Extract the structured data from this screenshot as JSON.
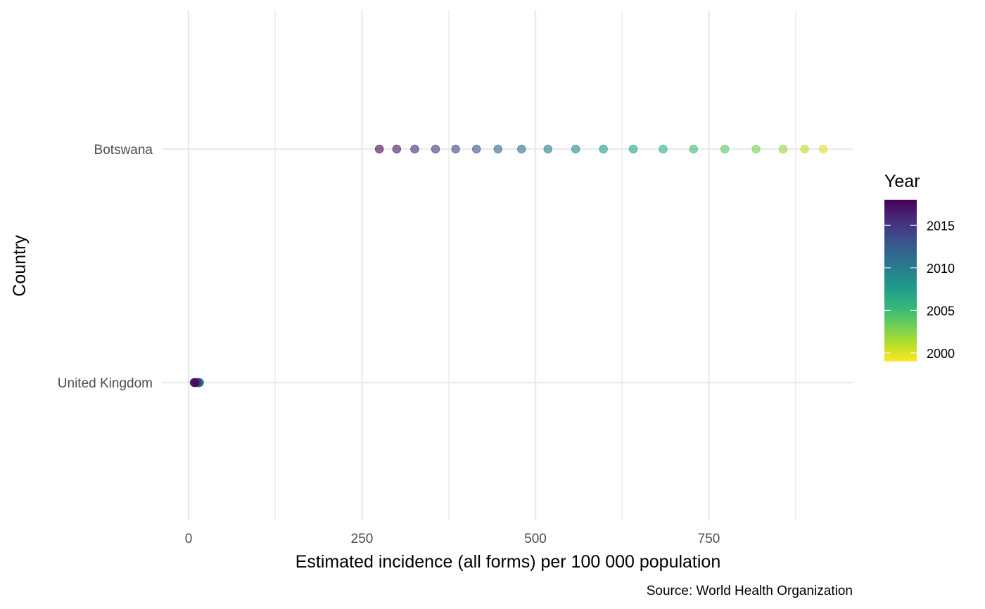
{
  "chart_data": {
    "type": "scatter",
    "title": "",
    "xlabel": "Estimated incidence (all forms) per 100 000 population",
    "ylabel": "Country",
    "caption": "Source: World Health Organization",
    "xlim": [
      0,
      960
    ],
    "x_ticks": [
      0,
      250,
      500,
      750
    ],
    "x_minor_ticks": [
      125,
      375,
      625,
      875
    ],
    "categories": [
      "Botswana",
      "United Kingdom"
    ],
    "grid": true,
    "legend": {
      "title": "Year",
      "type": "colorbar",
      "placement": "right",
      "range": [
        1999,
        2018
      ],
      "ticks": [
        2000,
        2005,
        2010,
        2015
      ],
      "palette": [
        "#fde725",
        "#b5de2b",
        "#6ece58",
        "#35b779",
        "#1f9e89",
        "#26828e",
        "#31688e",
        "#3e4989",
        "#482878",
        "#440154"
      ]
    },
    "point_opacity": 0.6,
    "series": [
      {
        "category": "Botswana",
        "points": [
          {
            "year": 2000,
            "x": 915
          },
          {
            "year": 2001,
            "x": 888
          },
          {
            "year": 2002,
            "x": 857
          },
          {
            "year": 2003,
            "x": 818
          },
          {
            "year": 2004,
            "x": 773
          },
          {
            "year": 2005,
            "x": 728
          },
          {
            "year": 2006,
            "x": 684
          },
          {
            "year": 2007,
            "x": 641
          },
          {
            "year": 2008,
            "x": 598
          },
          {
            "year": 2009,
            "x": 558
          },
          {
            "year": 2010,
            "x": 518
          },
          {
            "year": 2011,
            "x": 480
          },
          {
            "year": 2012,
            "x": 446
          },
          {
            "year": 2013,
            "x": 415
          },
          {
            "year": 2014,
            "x": 385
          },
          {
            "year": 2015,
            "x": 356
          },
          {
            "year": 2016,
            "x": 326
          },
          {
            "year": 2017,
            "x": 300
          },
          {
            "year": 2018,
            "x": 275
          }
        ]
      },
      {
        "category": "United Kingdom",
        "points": [
          {
            "year": 2000,
            "x": 12
          },
          {
            "year": 2001,
            "x": 13
          },
          {
            "year": 2002,
            "x": 14
          },
          {
            "year": 2003,
            "x": 14
          },
          {
            "year": 2004,
            "x": 15
          },
          {
            "year": 2005,
            "x": 15
          },
          {
            "year": 2006,
            "x": 15
          },
          {
            "year": 2007,
            "x": 15
          },
          {
            "year": 2008,
            "x": 15
          },
          {
            "year": 2009,
            "x": 16
          },
          {
            "year": 2010,
            "x": 15
          },
          {
            "year": 2011,
            "x": 15
          },
          {
            "year": 2012,
            "x": 14
          },
          {
            "year": 2013,
            "x": 13
          },
          {
            "year": 2014,
            "x": 12
          },
          {
            "year": 2015,
            "x": 11
          },
          {
            "year": 2016,
            "x": 10
          },
          {
            "year": 2017,
            "x": 9
          },
          {
            "year": 2018,
            "x": 8
          }
        ]
      }
    ]
  }
}
